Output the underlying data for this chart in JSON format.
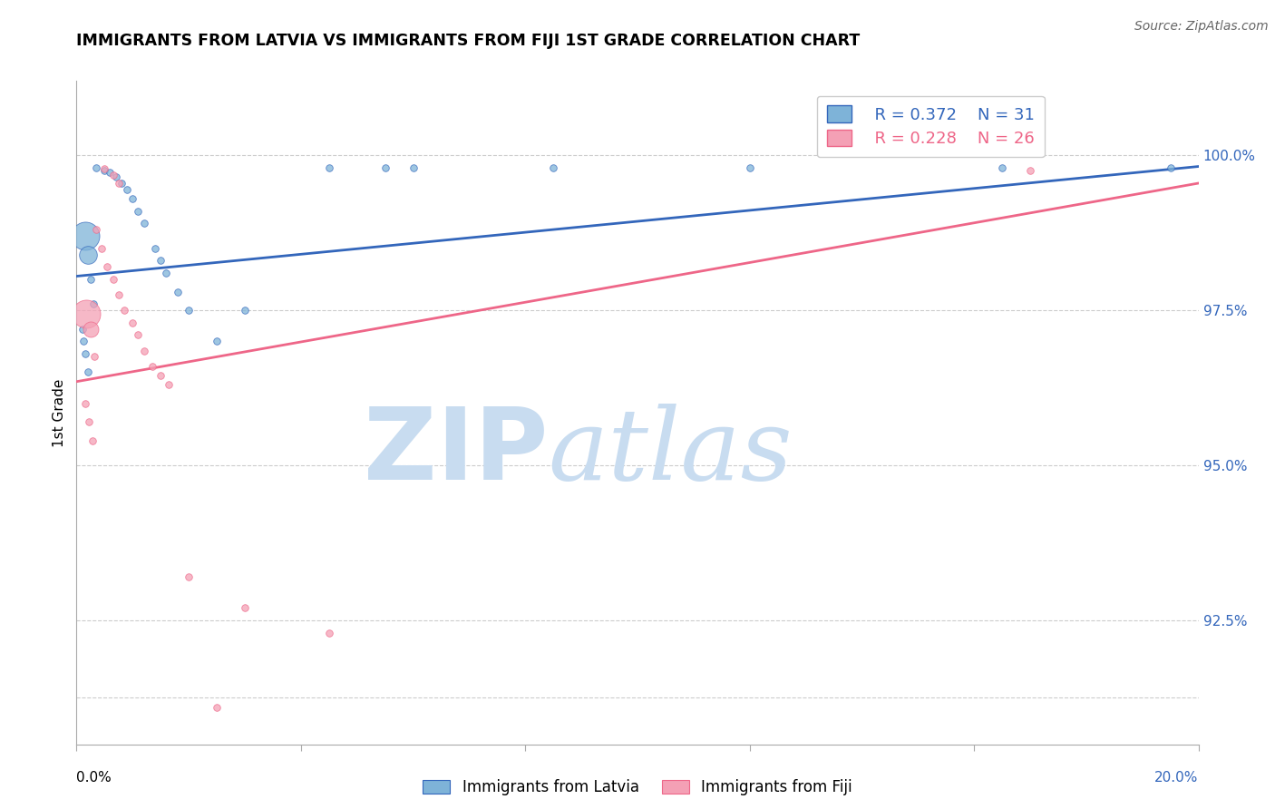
{
  "title": "IMMIGRANTS FROM LATVIA VS IMMIGRANTS FROM FIJI 1ST GRADE CORRELATION CHART",
  "source": "Source: ZipAtlas.com",
  "ylabel": "1st Grade",
  "yticks": [
    91.25,
    92.5,
    95.0,
    97.5,
    100.0
  ],
  "ytick_labels": [
    "",
    "92.5%",
    "95.0%",
    "97.5%",
    "100.0%"
  ],
  "xlim": [
    0.0,
    20.0
  ],
  "ylim": [
    90.5,
    101.2
  ],
  "legend_blue_R": "R = 0.372",
  "legend_blue_N": "N = 31",
  "legend_pink_R": "R = 0.228",
  "legend_pink_N": "N = 26",
  "blue_color": "#7EB3D8",
  "pink_color": "#F4A0B5",
  "blue_line_color": "#3366BB",
  "pink_line_color": "#EE6688",
  "watermark_zip": "ZIP",
  "watermark_atlas": "atlas",
  "watermark_color_zip": "#C8DCF0",
  "watermark_color_atlas": "#C8DCF0",
  "blue_scatter_x": [
    0.35,
    0.5,
    0.6,
    0.7,
    0.8,
    0.9,
    1.0,
    1.1,
    1.2,
    1.4,
    1.5,
    1.6,
    1.8,
    2.0,
    2.5,
    3.0,
    4.5,
    5.5,
    6.0,
    8.5,
    12.0,
    16.5,
    19.5,
    0.15,
    0.2,
    0.25,
    0.3,
    0.1,
    0.12,
    0.15,
    0.2
  ],
  "blue_scatter_y": [
    99.8,
    99.75,
    99.72,
    99.65,
    99.55,
    99.45,
    99.3,
    99.1,
    98.9,
    98.5,
    98.3,
    98.1,
    97.8,
    97.5,
    97.0,
    97.5,
    99.8,
    99.8,
    99.8,
    99.8,
    99.8,
    99.8,
    99.8,
    98.7,
    98.4,
    98.0,
    97.6,
    97.2,
    97.0,
    96.8,
    96.5
  ],
  "blue_scatter_s": [
    30,
    30,
    30,
    30,
    30,
    30,
    30,
    30,
    30,
    30,
    30,
    30,
    30,
    30,
    30,
    30,
    30,
    30,
    30,
    30,
    30,
    30,
    30,
    500,
    200,
    30,
    30,
    30,
    30,
    30,
    30
  ],
  "pink_scatter_x": [
    0.5,
    0.65,
    0.75,
    0.35,
    0.45,
    0.55,
    0.65,
    0.75,
    0.85,
    1.0,
    1.1,
    1.2,
    1.35,
    1.5,
    1.65,
    0.18,
    0.25,
    0.32,
    2.0,
    3.0,
    4.5,
    2.5,
    17.0,
    0.15,
    0.22,
    0.28
  ],
  "pink_scatter_y": [
    99.78,
    99.68,
    99.55,
    98.8,
    98.5,
    98.2,
    98.0,
    97.75,
    97.5,
    97.3,
    97.1,
    96.85,
    96.6,
    96.45,
    96.3,
    97.45,
    97.2,
    96.75,
    93.2,
    92.7,
    92.3,
    91.1,
    99.75,
    96.0,
    95.7,
    95.4
  ],
  "pink_scatter_s": [
    30,
    30,
    30,
    30,
    30,
    30,
    30,
    30,
    30,
    30,
    30,
    30,
    30,
    30,
    30,
    500,
    150,
    30,
    30,
    30,
    30,
    30,
    30,
    30,
    30,
    30
  ],
  "blue_line_x": [
    0.0,
    20.0
  ],
  "blue_line_y": [
    98.05,
    99.82
  ],
  "pink_line_x": [
    0.0,
    20.0
  ],
  "pink_line_y": [
    96.35,
    99.55
  ]
}
